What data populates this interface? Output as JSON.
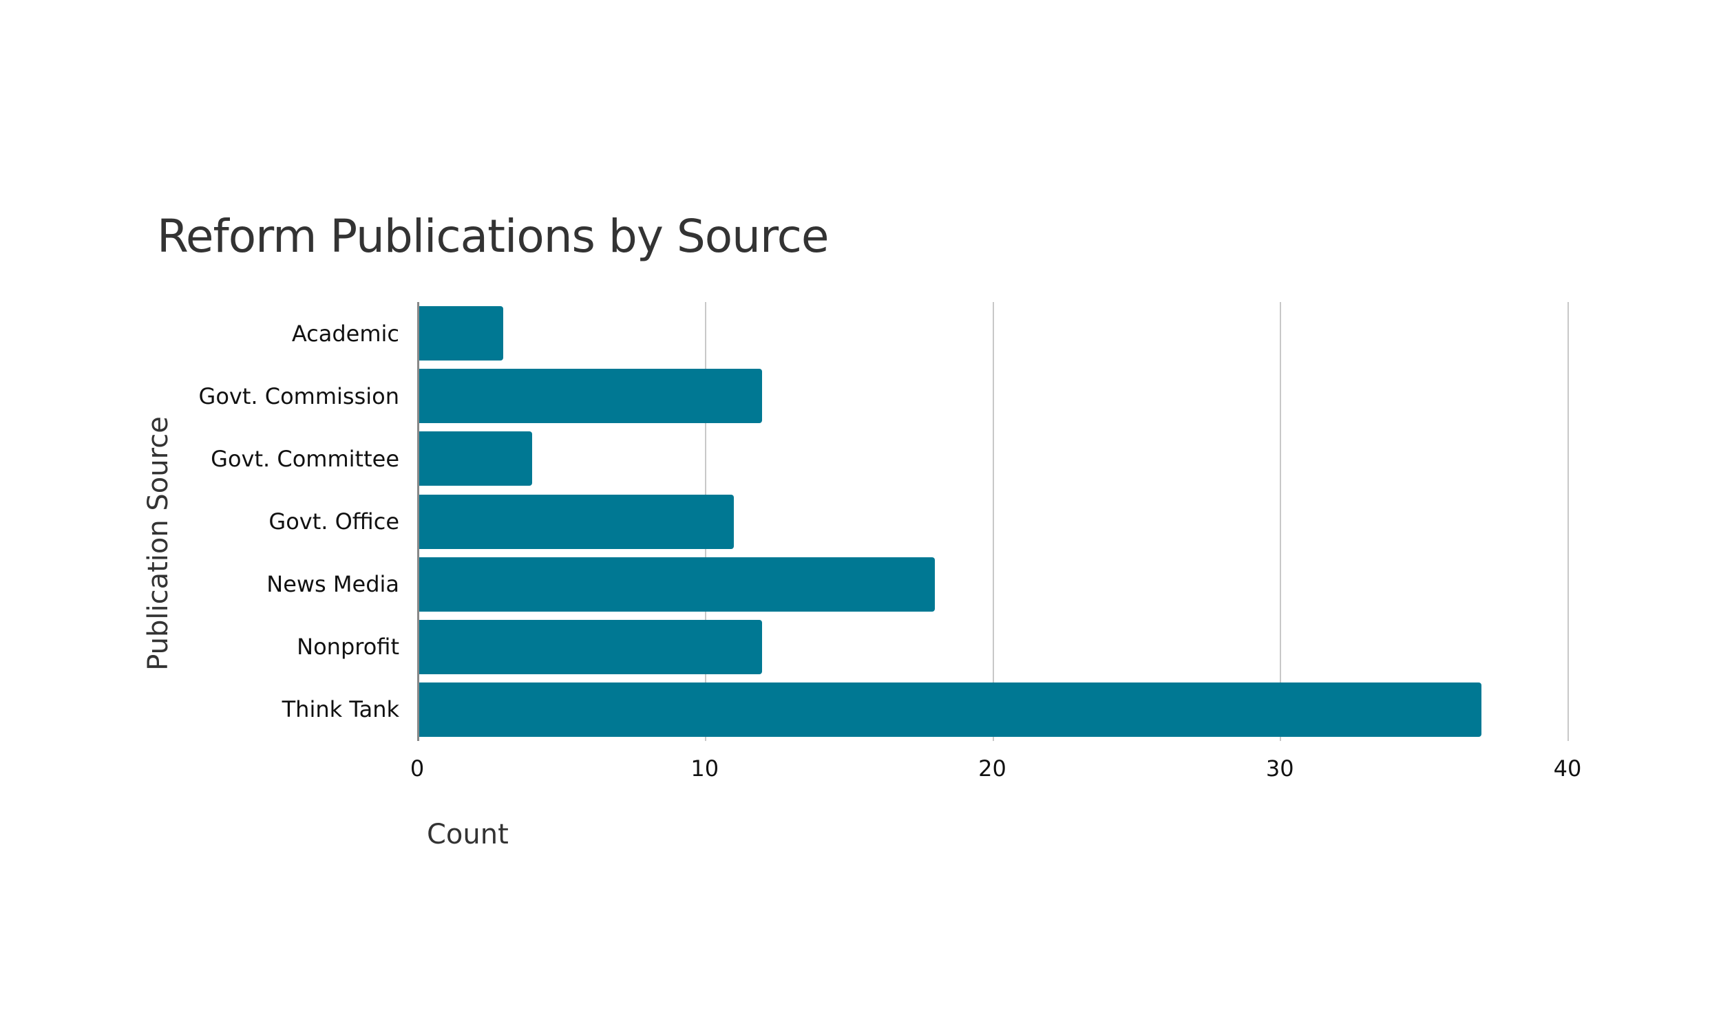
{
  "chart_data": {
    "type": "bar",
    "orientation": "horizontal",
    "title": "Reform Publications by Source",
    "xlabel": "Count",
    "ylabel": "Publication Source",
    "categories": [
      "Academic",
      "Govt. Commission",
      "Govt. Committee",
      "Govt. Office",
      "News Media",
      "Nonprofit",
      "Think Tank"
    ],
    "values": [
      3,
      12,
      4,
      11,
      18,
      12,
      37
    ],
    "xlim": [
      0,
      40
    ],
    "xticks": [
      "0",
      "10",
      "20",
      "30",
      "40"
    ],
    "grid": "vertical",
    "legend": "none",
    "bar_color": "#007893"
  }
}
